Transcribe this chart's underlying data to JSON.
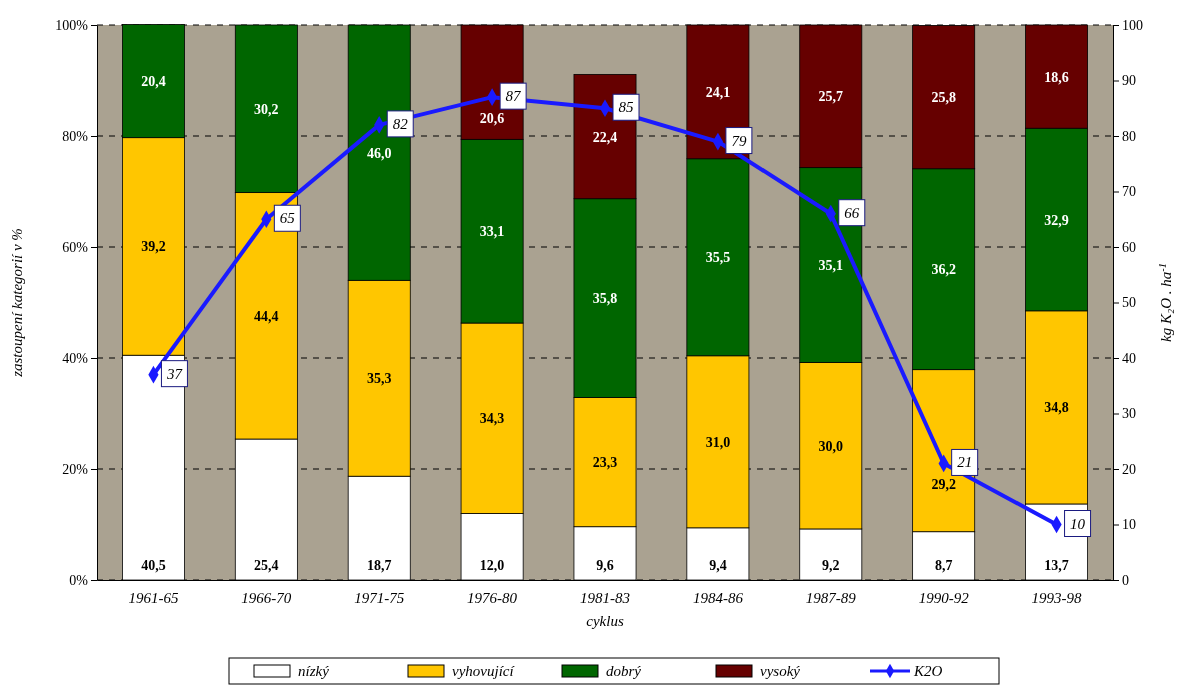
{
  "chart_data": {
    "type": "bar",
    "stacked": true,
    "xlabel": "cyklus",
    "ylabel": "zastoupení kategorií v %",
    "y2label": "kg K₂O . ha$^{-1}$",
    "categories": [
      "1961-65",
      "1966-70",
      "1971-75",
      "1976-80",
      "1981-83",
      "1984-86",
      "1987-89",
      "1990-92",
      "1993-98"
    ],
    "series": [
      {
        "name": "nízký",
        "color": "#ffffff",
        "values": [
          40.5,
          25.4,
          18.7,
          12.0,
          9.6,
          9.4,
          9.2,
          8.7,
          13.7
        ],
        "value_labels": [
          "40,5",
          "25,4",
          "18,7",
          "12,0",
          "9,6",
          "9,4",
          "9,2",
          "8,7",
          "13,7"
        ]
      },
      {
        "name": "vyhovující",
        "color": "#ffc600",
        "values": [
          39.2,
          44.4,
          35.3,
          34.3,
          23.3,
          31.0,
          30.0,
          29.2,
          34.8
        ],
        "value_labels": [
          "39,2",
          "44,4",
          "35,3",
          "34,3",
          "23,3",
          "31,0",
          "30,0",
          "29,2",
          "34,8"
        ]
      },
      {
        "name": "dobrý",
        "color": "#006600",
        "values": [
          20.4,
          30.2,
          46.0,
          33.1,
          35.8,
          35.5,
          35.1,
          36.2,
          32.9
        ],
        "value_labels": [
          "20,4",
          "30,2",
          "46,0",
          "33,1",
          "35,8",
          "35,5",
          "35,1",
          "36,2",
          "32,9"
        ]
      },
      {
        "name": "vysoký",
        "color": "#660000",
        "values": [
          null,
          null,
          null,
          20.6,
          22.4,
          24.1,
          25.7,
          25.8,
          18.6
        ],
        "value_labels": [
          null,
          null,
          null,
          "20,6",
          "22,4",
          "24,1",
          "25,7",
          "25,8",
          "18,6"
        ]
      },
      {
        "name": "K2O",
        "type": "line",
        "axis": "y2",
        "color": "#1a1aff",
        "marker": "diamond",
        "values": [
          37,
          65,
          82,
          87,
          85,
          79,
          66,
          21,
          10
        ],
        "value_labels": [
          "37",
          "65",
          "82",
          "87",
          "85",
          "79",
          "66",
          "21",
          "10"
        ]
      }
    ],
    "ylim": [
      0,
      100
    ],
    "yticks": [
      {
        "value": 0,
        "label": "0%"
      },
      {
        "value": 20,
        "label": "20%"
      },
      {
        "value": 40,
        "label": "40%"
      },
      {
        "value": 60,
        "label": "60%"
      },
      {
        "value": 80,
        "label": "80%"
      },
      {
        "value": 100,
        "label": "100%"
      }
    ],
    "y2lim": [
      0,
      100
    ],
    "y2ticks": [
      0,
      10,
      20,
      30,
      40,
      50,
      60,
      70,
      80,
      90,
      100
    ],
    "grid": "y",
    "legend": "bottom"
  }
}
